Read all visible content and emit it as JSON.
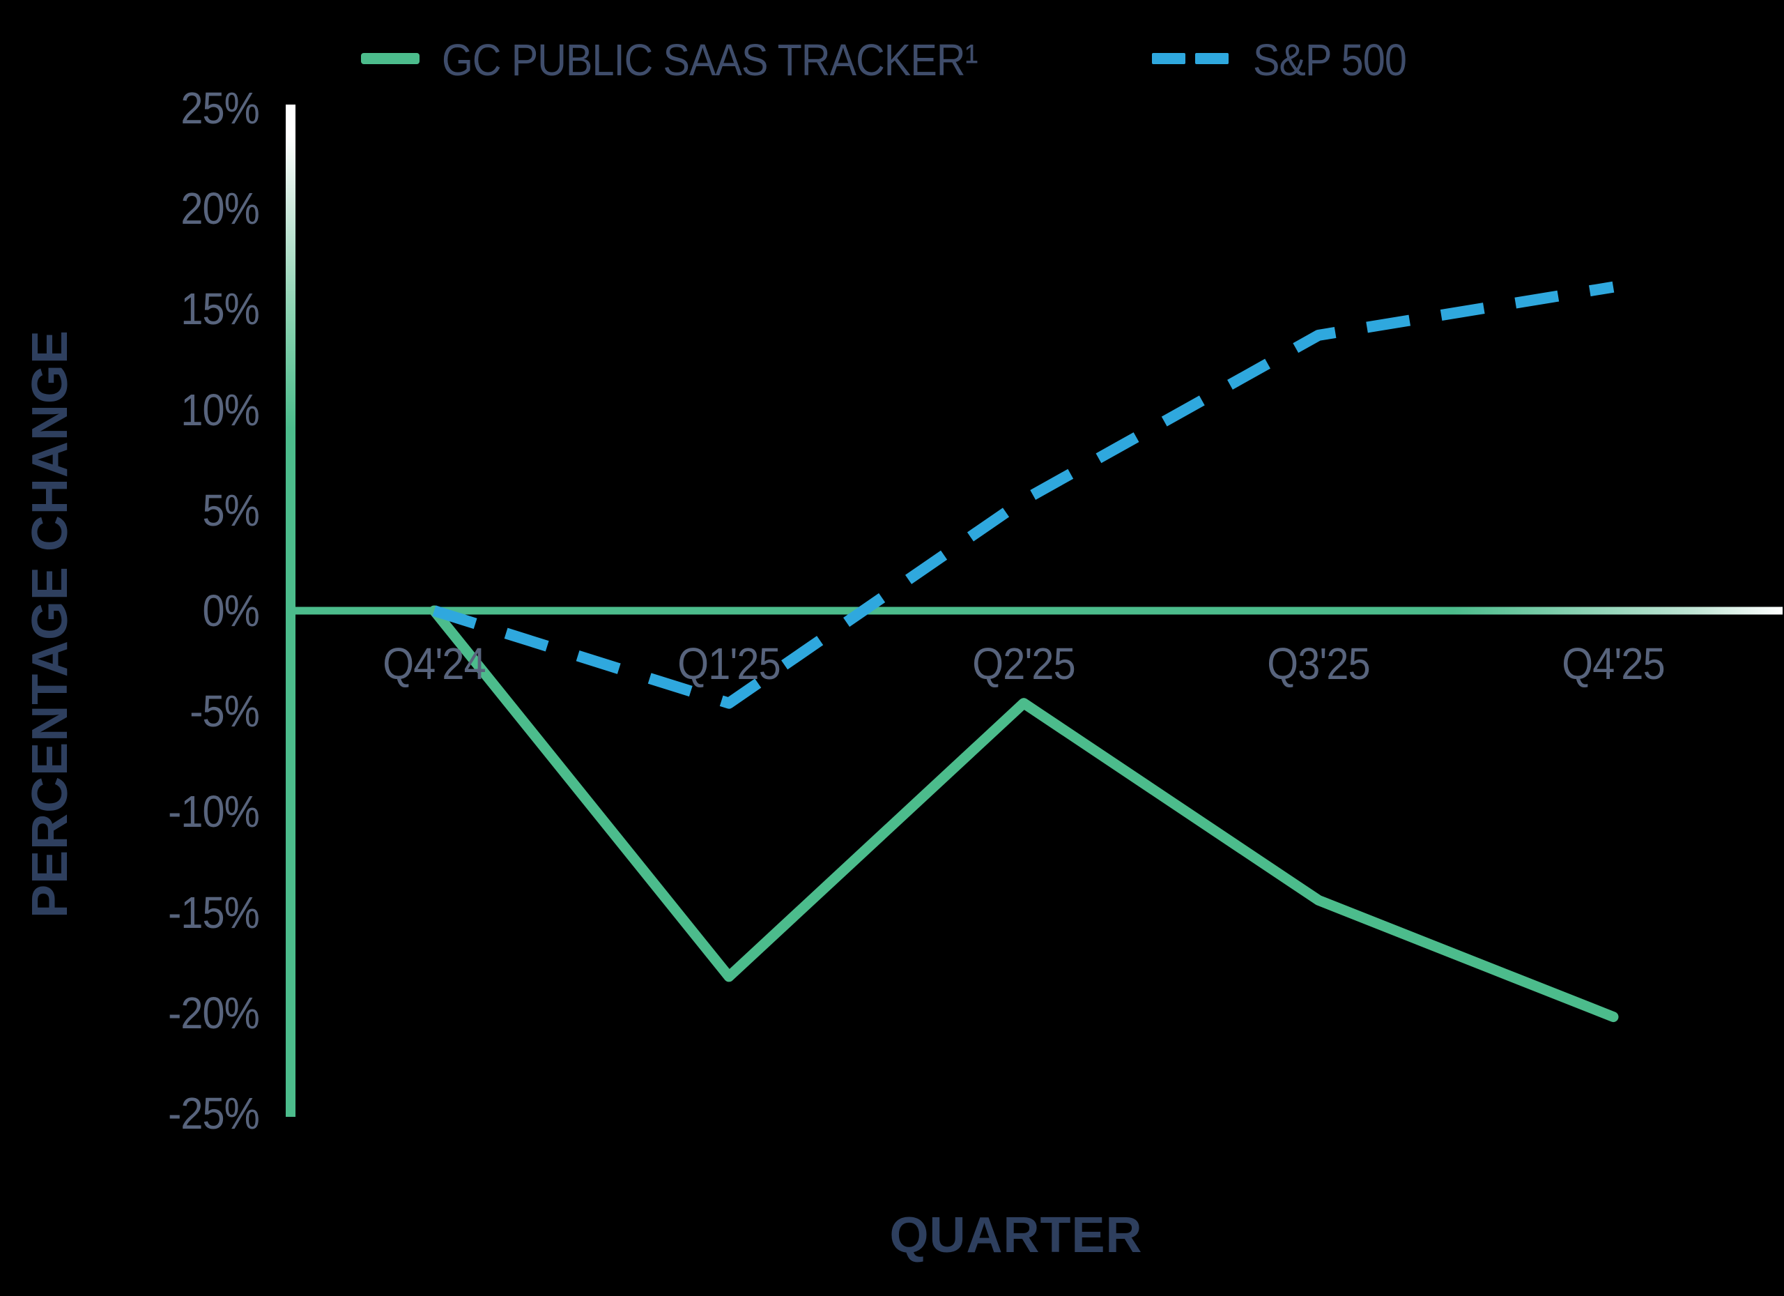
{
  "chart_data": {
    "type": "line",
    "title": "",
    "categories": [
      "Q4'24",
      "Q1'25",
      "Q2'25",
      "Q3'25",
      "Q4'25"
    ],
    "series": [
      {
        "name": "GC PUBLIC SAAS TRACKER¹",
        "style": "solid",
        "color": "#4CBC8C",
        "values": [
          0,
          -18.2,
          -4.6,
          -14.4,
          -20.2
        ]
      },
      {
        "name": "S&P 500",
        "style": "dashed",
        "color": "#2FA8DE",
        "values": [
          0,
          -4.6,
          5.5,
          13.7,
          16.1
        ]
      }
    ],
    "xlabel": "QUARTER",
    "ylabel": "PERCENTAGE CHANGE",
    "ylim": [
      -25,
      25
    ],
    "y_ticks": [
      "25%",
      "20%",
      "15%",
      "10%",
      "5%",
      "0%",
      "-5%",
      "-10%",
      "-15%",
      "-20%",
      "-25%"
    ],
    "y_tick_values": [
      25,
      20,
      15,
      10,
      5,
      0,
      -5,
      -10,
      -15,
      -20,
      -25
    ],
    "grid": false,
    "legend_position": "top"
  },
  "legend": {
    "series1_label": "GC PUBLIC SAAS TRACKER¹",
    "series2_label": "S&P 500"
  },
  "axes": {
    "x_title": "QUARTER",
    "y_title": "PERCENTAGE CHANGE"
  },
  "colors": {
    "background": "#000000",
    "saas_line": "#4CBC8C",
    "sp500_line": "#2FA8DE",
    "tick_label": "#58647D",
    "legend_label": "#3F4D6B",
    "axis_title": "#2E3F5E",
    "axis_gradient_end": "#FFFFFF"
  }
}
